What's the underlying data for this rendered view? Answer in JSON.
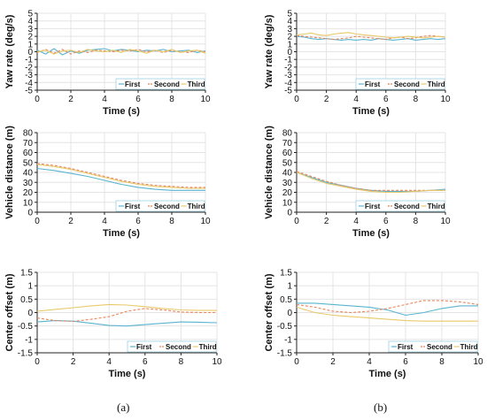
{
  "captions": [
    "(a)",
    "(b)"
  ],
  "colors": {
    "First": "#5ab4cf",
    "Second": "#e8855a",
    "Third": "#e8c96a",
    "grid": "#e4e4e4",
    "axis": "#222222"
  },
  "chart_data": [
    {
      "id": "a-yaw",
      "type": "line",
      "xlabel": "Time (s)",
      "ylabel": "Yaw rate (deg/s)",
      "xlim": [
        0,
        10
      ],
      "ylim": [
        -5,
        5
      ],
      "xticks": [
        0,
        2,
        4,
        6,
        8,
        10
      ],
      "yticks": [
        -5,
        -4,
        -3,
        -2,
        -1,
        0,
        1,
        2,
        3,
        4,
        5
      ],
      "grid": true,
      "legend": "bottom-right",
      "series": [
        {
          "name": "First",
          "style": "solid",
          "x": [
            0,
            0.5,
            1,
            1.5,
            2,
            2.5,
            3,
            3.5,
            4,
            4.5,
            5,
            5.5,
            6,
            6.5,
            7,
            7.5,
            8,
            8.5,
            9,
            9.5,
            10
          ],
          "y": [
            0.2,
            -0.3,
            0.4,
            -0.4,
            0.1,
            -0.2,
            0.2,
            0.3,
            0.4,
            0.1,
            0.3,
            0.2,
            0.0,
            0.2,
            0.1,
            0.3,
            0.0,
            0.1,
            0.2,
            -0.1,
            0.1
          ]
        },
        {
          "name": "Second",
          "style": "dashed",
          "x": [
            0,
            0.5,
            1,
            1.5,
            2,
            2.5,
            3,
            3.5,
            4,
            4.5,
            5,
            5.5,
            6,
            6.5,
            7,
            7.5,
            8,
            8.5,
            9,
            9.5,
            10
          ],
          "y": [
            -0.1,
            0.3,
            -0.2,
            0.3,
            -0.3,
            0.1,
            -0.1,
            0.2,
            0.1,
            0.0,
            0.2,
            0.1,
            0.3,
            0.0,
            0.2,
            -0.1,
            0.2,
            0.0,
            -0.1,
            0.2,
            0.0
          ]
        },
        {
          "name": "Third",
          "style": "solid",
          "x": [
            0,
            0.5,
            1,
            1.5,
            2,
            2.5,
            3,
            3.5,
            4,
            4.5,
            5,
            5.5,
            6,
            6.5,
            7,
            7.5,
            8,
            8.5,
            9,
            9.5,
            10
          ],
          "y": [
            0.0,
            0.2,
            -0.3,
            0.1,
            0.2,
            -0.1,
            0.3,
            0.1,
            0.0,
            0.2,
            -0.1,
            0.3,
            0.1,
            -0.2,
            0.2,
            0.0,
            0.3,
            -0.1,
            0.1,
            0.2,
            -0.2
          ]
        }
      ]
    },
    {
      "id": "b-yaw",
      "type": "line",
      "xlabel": "Time (s)",
      "ylabel": "Yaw rate (deg/s)",
      "xlim": [
        0,
        10
      ],
      "ylim": [
        -5,
        5
      ],
      "xticks": [
        0,
        2,
        4,
        6,
        8,
        10
      ],
      "yticks": [
        -5,
        -4,
        -3,
        -2,
        -1,
        0,
        1,
        2,
        3,
        4,
        5
      ],
      "grid": true,
      "legend": "bottom-right",
      "series": [
        {
          "name": "First",
          "style": "solid",
          "x": [
            0,
            0.5,
            1,
            1.5,
            2,
            2.5,
            3,
            3.5,
            4,
            4.5,
            5,
            5.5,
            6,
            6.5,
            7,
            7.5,
            8,
            8.5,
            9,
            9.5,
            10
          ],
          "y": [
            2.0,
            1.9,
            1.7,
            1.6,
            1.7,
            1.6,
            1.5,
            1.6,
            1.5,
            1.6,
            1.5,
            1.7,
            1.6,
            1.5,
            1.6,
            1.7,
            1.5,
            1.6,
            1.7,
            1.6,
            1.7
          ]
        },
        {
          "name": "Second",
          "style": "dashed",
          "x": [
            0,
            0.5,
            1,
            1.5,
            2,
            2.5,
            3,
            3.5,
            4,
            4.5,
            5,
            5.5,
            6,
            6.5,
            7,
            7.5,
            8,
            8.5,
            9,
            9.5,
            10
          ],
          "y": [
            2.1,
            2.0,
            1.9,
            1.8,
            1.7,
            1.6,
            1.7,
            1.8,
            2.0,
            1.9,
            1.8,
            1.7,
            1.6,
            1.8,
            1.9,
            1.7,
            1.8,
            2.0,
            2.1,
            2.0,
            1.9
          ]
        },
        {
          "name": "Third",
          "style": "solid",
          "x": [
            0,
            0.5,
            1,
            1.5,
            2,
            2.5,
            3,
            3.5,
            4,
            4.5,
            5,
            5.5,
            6,
            6.5,
            7,
            7.5,
            8,
            8.5,
            9,
            9.5,
            10
          ],
          "y": [
            2.2,
            2.3,
            2.4,
            2.2,
            2.1,
            2.3,
            2.4,
            2.5,
            2.3,
            2.2,
            2.1,
            2.0,
            1.9,
            1.8,
            1.9,
            2.0,
            1.9,
            1.8,
            1.9,
            2.0,
            1.9
          ]
        }
      ]
    },
    {
      "id": "a-dist",
      "type": "line",
      "xlabel": "Time (s)",
      "ylabel": "Vehicle distance (m)",
      "xlim": [
        0,
        10
      ],
      "ylim": [
        0,
        80
      ],
      "xticks": [
        0,
        2,
        4,
        6,
        8,
        10
      ],
      "yticks": [
        0,
        10,
        20,
        30,
        40,
        50,
        60,
        70,
        80
      ],
      "grid": true,
      "legend": "bottom-right",
      "series": [
        {
          "name": "First",
          "style": "solid",
          "x": [
            0,
            1,
            2,
            3,
            4,
            5,
            6,
            7,
            8,
            9,
            10
          ],
          "y": [
            44,
            42,
            39,
            36,
            32,
            28,
            25,
            23,
            22,
            22,
            22
          ]
        },
        {
          "name": "Second",
          "style": "dashed",
          "x": [
            0,
            1,
            2,
            3,
            4,
            5,
            6,
            7,
            8,
            9,
            10
          ],
          "y": [
            49,
            47,
            44,
            40,
            36,
            32,
            29,
            27,
            26,
            25,
            25
          ]
        },
        {
          "name": "Third",
          "style": "solid",
          "x": [
            0,
            1,
            2,
            3,
            4,
            5,
            6,
            7,
            8,
            9,
            10
          ],
          "y": [
            48,
            46,
            43,
            39,
            35,
            31,
            28,
            26,
            25,
            24,
            24
          ]
        }
      ]
    },
    {
      "id": "b-dist",
      "type": "line",
      "xlabel": "Time (s)",
      "ylabel": "Vehicle distance (m)",
      "xlim": [
        0,
        10
      ],
      "ylim": [
        0,
        80
      ],
      "xticks": [
        0,
        2,
        4,
        6,
        8,
        10
      ],
      "yticks": [
        0,
        10,
        20,
        30,
        40,
        50,
        60,
        70,
        80
      ],
      "grid": true,
      "legend": "bottom-right",
      "series": [
        {
          "name": "First",
          "style": "solid",
          "x": [
            0,
            1,
            2,
            3,
            4,
            5,
            6,
            7,
            8,
            9,
            10
          ],
          "y": [
            40,
            35,
            30,
            27,
            24,
            22,
            21,
            21,
            21,
            22,
            23
          ]
        },
        {
          "name": "Second",
          "style": "dashed",
          "x": [
            0,
            1,
            2,
            3,
            4,
            5,
            6,
            7,
            8,
            9,
            10
          ],
          "y": [
            41,
            36,
            31,
            27,
            24,
            22,
            22,
            22,
            22,
            22,
            22
          ]
        },
        {
          "name": "Third",
          "style": "solid",
          "x": [
            0,
            1,
            2,
            3,
            4,
            5,
            6,
            7,
            8,
            9,
            10
          ],
          "y": [
            40,
            34,
            29,
            26,
            23,
            21,
            20,
            20,
            21,
            22,
            22
          ]
        }
      ]
    },
    {
      "id": "a-offset",
      "type": "line",
      "xlabel": "Time (s)",
      "ylabel": "Center offset (m)",
      "xlim": [
        0,
        10
      ],
      "ylim": [
        -1.5,
        1.5
      ],
      "xticks": [
        0,
        2,
        4,
        6,
        8,
        10
      ],
      "yticks": [
        -1.5,
        -1,
        -0.5,
        0,
        0.5,
        1,
        1.5
      ],
      "grid": true,
      "legend": "bottom-right",
      "series": [
        {
          "name": "First",
          "style": "solid",
          "x": [
            0,
            1,
            2,
            3,
            4,
            5,
            6,
            7,
            8,
            9,
            10
          ],
          "y": [
            -0.35,
            -0.3,
            -0.32,
            -0.4,
            -0.48,
            -0.5,
            -0.45,
            -0.4,
            -0.35,
            -0.36,
            -0.38
          ]
        },
        {
          "name": "Second",
          "style": "dashed",
          "x": [
            0,
            1,
            2,
            3,
            4,
            5,
            6,
            7,
            8,
            9,
            10
          ],
          "y": [
            -0.2,
            -0.3,
            -0.33,
            -0.25,
            -0.15,
            0.05,
            0.15,
            0.1,
            0.02,
            0.0,
            0.0
          ]
        },
        {
          "name": "Third",
          "style": "solid",
          "x": [
            0,
            1,
            2,
            3,
            4,
            5,
            6,
            7,
            8,
            9,
            10
          ],
          "y": [
            0.05,
            0.12,
            0.18,
            0.25,
            0.3,
            0.28,
            0.22,
            0.15,
            0.1,
            0.08,
            0.08
          ]
        }
      ]
    },
    {
      "id": "b-offset",
      "type": "line",
      "xlabel": "Time (s)",
      "ylabel": "Center offset (m)",
      "xlim": [
        0,
        10
      ],
      "ylim": [
        -1.5,
        1.5
      ],
      "xticks": [
        0,
        2,
        4,
        6,
        8,
        10
      ],
      "yticks": [
        -1.5,
        -1,
        -0.5,
        0,
        0.5,
        1,
        1.5
      ],
      "grid": true,
      "legend": "bottom-right",
      "series": [
        {
          "name": "First",
          "style": "solid",
          "x": [
            0,
            1,
            2,
            3,
            4,
            5,
            6,
            7,
            8,
            9,
            10
          ],
          "y": [
            0.35,
            0.35,
            0.3,
            0.25,
            0.2,
            0.1,
            -0.1,
            0.0,
            0.15,
            0.25,
            0.25
          ]
        },
        {
          "name": "Second",
          "style": "dashed",
          "x": [
            0,
            1,
            2,
            3,
            4,
            5,
            6,
            7,
            8,
            9,
            10
          ],
          "y": [
            0.3,
            0.2,
            0.05,
            0.0,
            0.05,
            0.15,
            0.3,
            0.45,
            0.45,
            0.4,
            0.3
          ]
        },
        {
          "name": "Third",
          "style": "solid",
          "x": [
            0,
            1,
            2,
            3,
            4,
            5,
            6,
            7,
            8,
            9,
            10
          ],
          "y": [
            0.2,
            0.0,
            -0.1,
            -0.15,
            -0.2,
            -0.25,
            -0.3,
            -0.32,
            -0.32,
            -0.32,
            -0.32
          ]
        }
      ]
    }
  ]
}
